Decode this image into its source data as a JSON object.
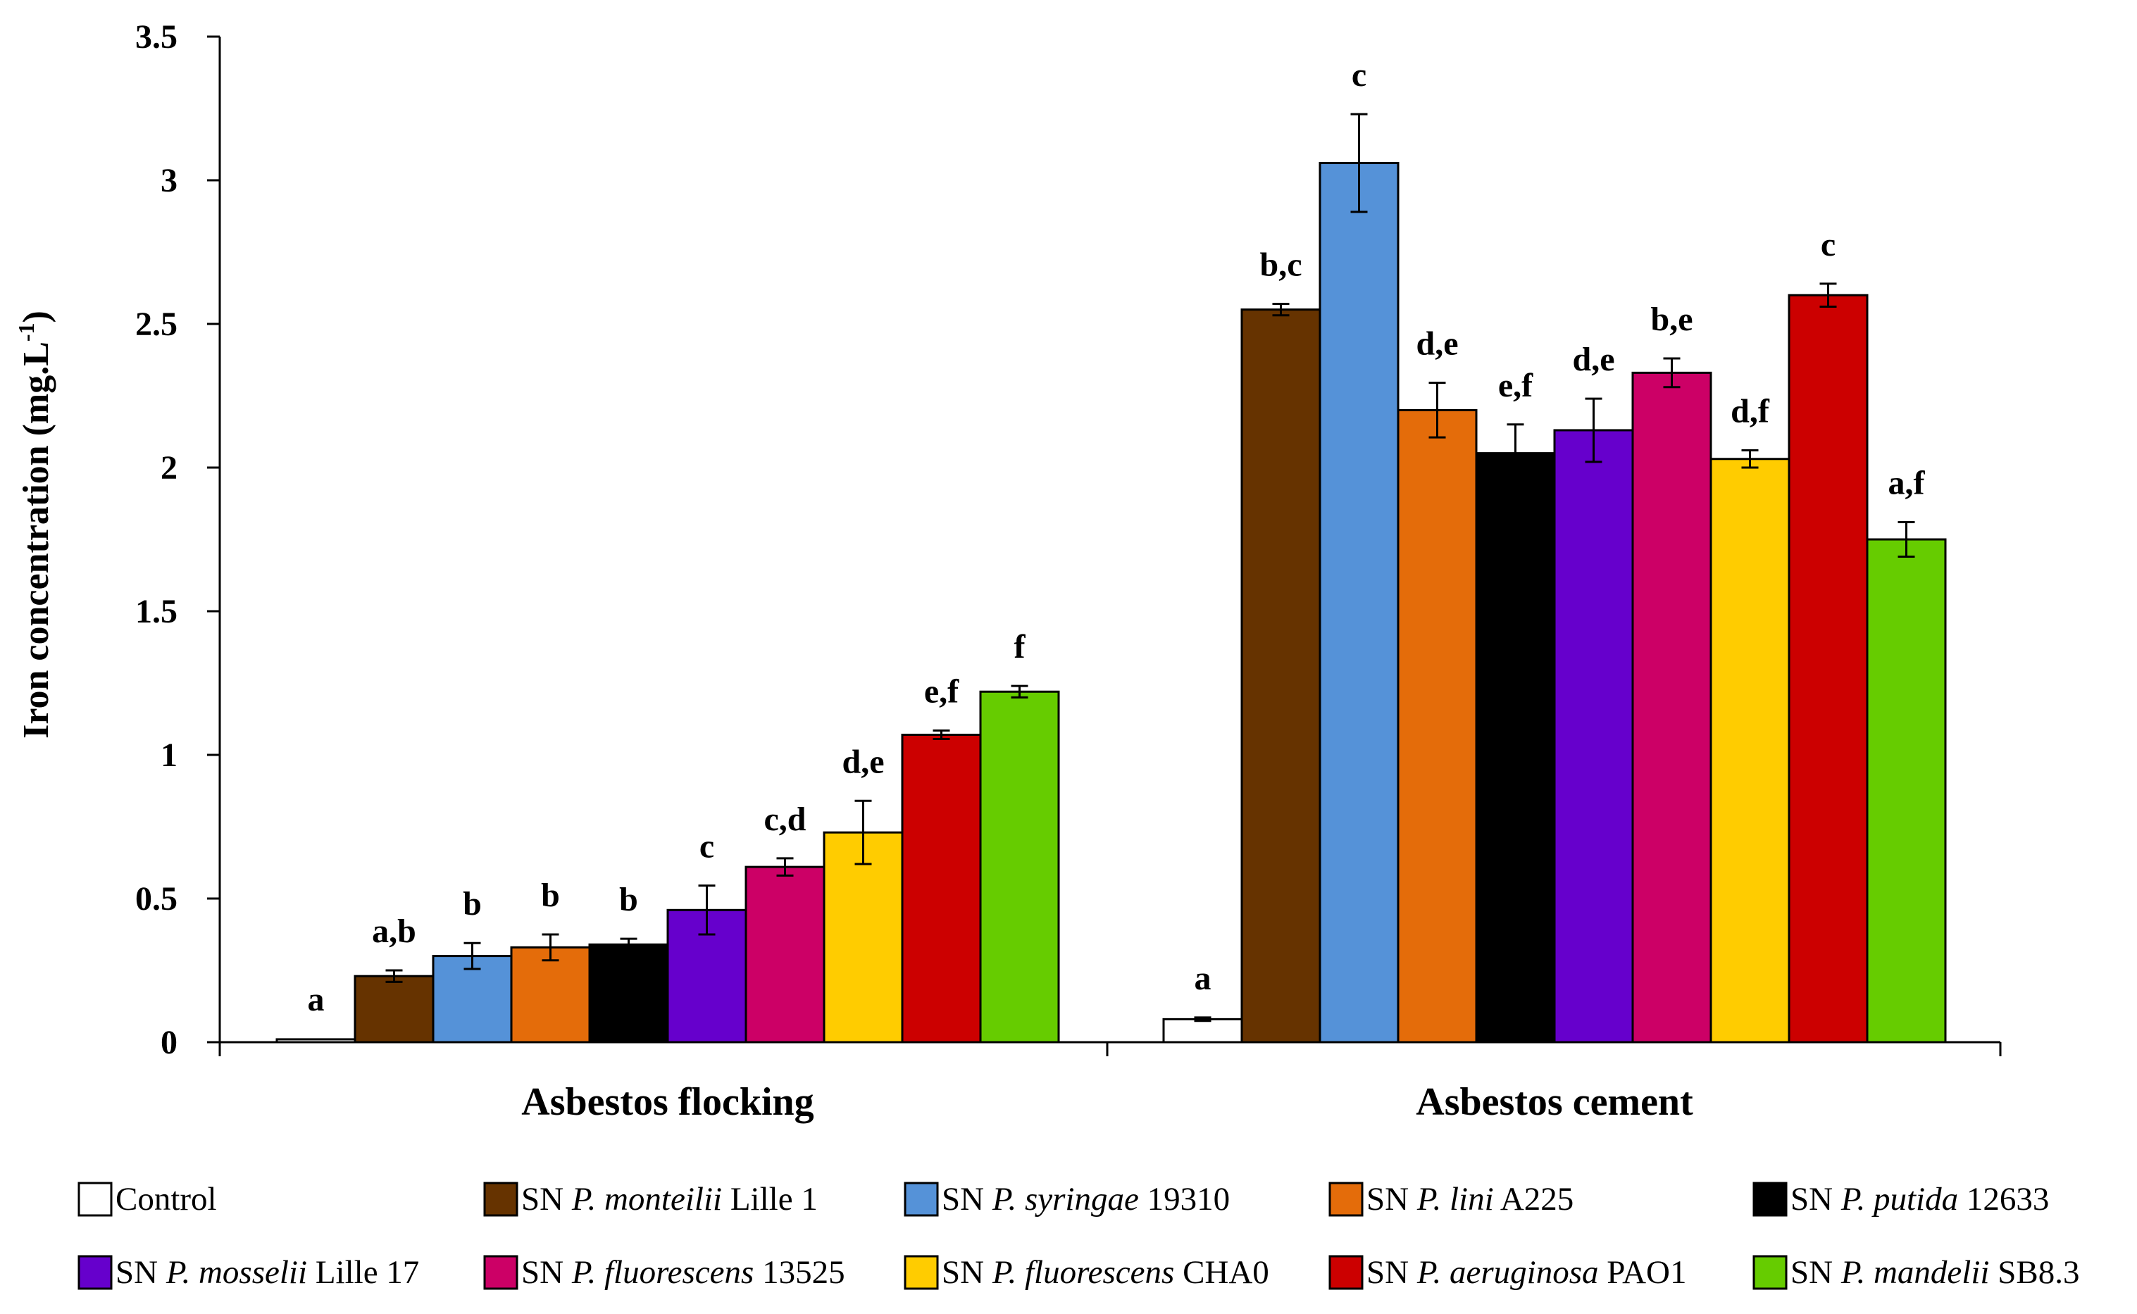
{
  "chart_data": {
    "type": "bar",
    "title": "",
    "xlabel": "",
    "ylabel": "Iron concentration (mg.L",
    "ylabel_superscript": "-1",
    "ylabel_suffix": ")",
    "ylim": [
      0,
      3.5
    ],
    "yticks": [
      "0",
      "0.5",
      "1",
      "1.5",
      "2",
      "2.5",
      "3",
      "3.5"
    ],
    "grid": false,
    "legend_position": "bottom",
    "categories": [
      "Asbestos flocking",
      "Asbestos cement"
    ],
    "series": [
      {
        "name": "Control",
        "color": "#ffffff",
        "values": [
          0.01,
          0.08
        ],
        "errors": [
          0.002,
          0.006
        ],
        "labels": [
          "a",
          "a"
        ],
        "legend": [
          {
            "t": "Control",
            "i": false
          }
        ]
      },
      {
        "name": "SN P. monteilii Lille 1",
        "color": "#663300",
        "values": [
          0.23,
          2.55
        ],
        "errors": [
          0.02,
          0.02
        ],
        "labels": [
          "a,b",
          "b,c"
        ],
        "legend": [
          {
            "t": "SN ",
            "i": false
          },
          {
            "t": "P. monteilii",
            "i": true
          },
          {
            "t": " Lille 1",
            "i": false
          }
        ]
      },
      {
        "name": "SN P. syringae 19310",
        "color": "#5592d8",
        "values": [
          0.3,
          3.06
        ],
        "errors": [
          0.045,
          0.17
        ],
        "labels": [
          "b",
          "c"
        ],
        "legend": [
          {
            "t": "SN ",
            "i": false
          },
          {
            "t": "P. syringae",
            "i": true
          },
          {
            "t": " 19310",
            "i": false
          }
        ]
      },
      {
        "name": "SN P. lini A225",
        "color": "#e46c0a",
        "values": [
          0.33,
          2.2
        ],
        "errors": [
          0.045,
          0.095
        ],
        "labels": [
          "b",
          "d,e"
        ],
        "legend": [
          {
            "t": "SN ",
            "i": false
          },
          {
            "t": "P. lini",
            "i": true
          },
          {
            "t": " A225",
            "i": false
          }
        ]
      },
      {
        "name": "SN P. putida 12633",
        "color": "#000000",
        "values": [
          0.34,
          2.05
        ],
        "errors": [
          0.02,
          0.1
        ],
        "labels": [
          "b",
          "e,f"
        ],
        "legend": [
          {
            "t": "SN ",
            "i": false
          },
          {
            "t": "P. putida",
            "i": true
          },
          {
            "t": " 12633",
            "i": false
          }
        ]
      },
      {
        "name": "SN P. mosselii Lille 17",
        "color": "#6600cc",
        "values": [
          0.46,
          2.13
        ],
        "errors": [
          0.085,
          0.11
        ],
        "labels": [
          "c",
          "d,e"
        ],
        "legend": [
          {
            "t": "SN ",
            "i": false
          },
          {
            "t": "P. mosselii",
            "i": true
          },
          {
            "t": " Lille 17",
            "i": false
          }
        ]
      },
      {
        "name": "SN P. fluorescens 13525",
        "color": "#cc0066",
        "values": [
          0.61,
          2.33
        ],
        "errors": [
          0.03,
          0.05
        ],
        "labels": [
          "c,d",
          "b,e"
        ],
        "legend": [
          {
            "t": "SN ",
            "i": false
          },
          {
            "t": "P. fluorescens",
            "i": true
          },
          {
            "t": " 13525",
            "i": false
          }
        ]
      },
      {
        "name": "SN P. fluorescens CHA0",
        "color": "#ffcc00",
        "values": [
          0.73,
          2.03
        ],
        "errors": [
          0.11,
          0.03
        ],
        "labels": [
          "d,e",
          "d,f"
        ],
        "legend": [
          {
            "t": "SN ",
            "i": false
          },
          {
            "t": "P. fluorescens",
            "i": true
          },
          {
            "t": " CHA0",
            "i": false
          }
        ]
      },
      {
        "name": "SN P. aeruginosa PAO1",
        "color": "#cc0000",
        "values": [
          1.07,
          2.6
        ],
        "errors": [
          0.015,
          0.04
        ],
        "labels": [
          "e,f",
          "c"
        ],
        "legend": [
          {
            "t": "SN ",
            "i": false
          },
          {
            "t": "P. aeruginosa",
            "i": true
          },
          {
            "t": " PAO1",
            "i": false
          }
        ]
      },
      {
        "name": "SN P. mandelii SB8.3",
        "color": "#66cc00",
        "values": [
          1.22,
          1.75
        ],
        "errors": [
          0.02,
          0.06
        ],
        "labels": [
          "f",
          "a,f"
        ],
        "legend": [
          {
            "t": "SN ",
            "i": false
          },
          {
            "t": "P. mandelii",
            "i": true
          },
          {
            "t": " SB8.3",
            "i": false
          }
        ]
      }
    ]
  }
}
